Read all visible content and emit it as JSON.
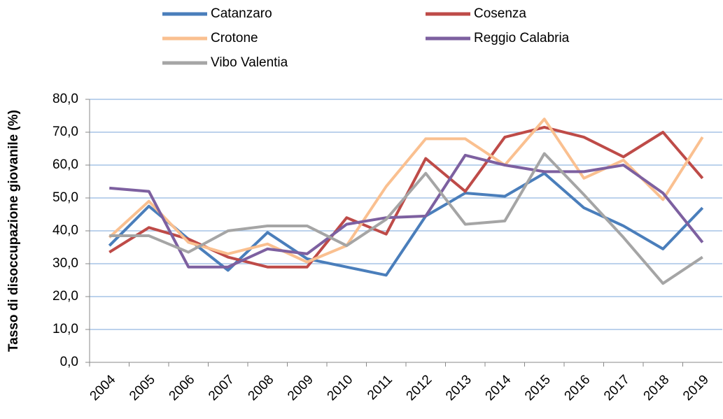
{
  "chart_data": {
    "type": "line",
    "y_label": "Tasso di disoccupazione giovanile (%)",
    "categories": [
      "2004",
      "2005",
      "2006",
      "2007",
      "2008",
      "2009",
      "2010",
      "2011",
      "2012",
      "2013",
      "2014",
      "2015",
      "2016",
      "2017",
      "2018",
      "2019"
    ],
    "series": [
      {
        "name": "Catanzaro",
        "color": "#4a7ebb",
        "values": [
          35.5,
          47.5,
          37.5,
          28,
          39.5,
          31.5,
          29,
          26.5,
          44.5,
          51.5,
          50.5,
          57.5,
          47,
          41.5,
          34.5,
          47
        ]
      },
      {
        "name": "Cosenza",
        "color": "#be4b48",
        "values": [
          33.5,
          41,
          37.5,
          32,
          29,
          29,
          44,
          39,
          62,
          52,
          68.5,
          71.5,
          68.5,
          62.5,
          70,
          56
        ]
      },
      {
        "name": "Crotone",
        "color": "#fac090",
        "values": [
          38,
          49,
          36.5,
          33,
          36,
          30.5,
          35.5,
          53.5,
          68,
          68,
          60,
          74,
          56,
          61.5,
          49.5,
          68.5
        ]
      },
      {
        "name": "Reggio Calabria",
        "color": "#7d60a0",
        "values": [
          53,
          52,
          29,
          29,
          34.5,
          33,
          42,
          44,
          44.5,
          63,
          60,
          58,
          58,
          60,
          51.5,
          36.5
        ]
      },
      {
        "name": "Vibo Valentia",
        "color": "#a5a5a5",
        "values": [
          38.5,
          38.5,
          33.5,
          40,
          41.5,
          41.5,
          35.5,
          43.5,
          57.5,
          42,
          43,
          63.5,
          51,
          38,
          24,
          32
        ]
      }
    ],
    "ylim": [
      0,
      80
    ],
    "yticks": [
      {
        "value": 0,
        "label": "0,0"
      },
      {
        "value": 10,
        "label": "10,0"
      },
      {
        "value": 20,
        "label": "20,0"
      },
      {
        "value": 30,
        "label": "30,0"
      },
      {
        "value": 40,
        "label": "40,0"
      },
      {
        "value": 50,
        "label": "50,0"
      },
      {
        "value": 60,
        "label": "60,0"
      },
      {
        "value": 70,
        "label": "70,0"
      },
      {
        "value": 80,
        "label": "80,0"
      }
    ],
    "grid": true
  }
}
